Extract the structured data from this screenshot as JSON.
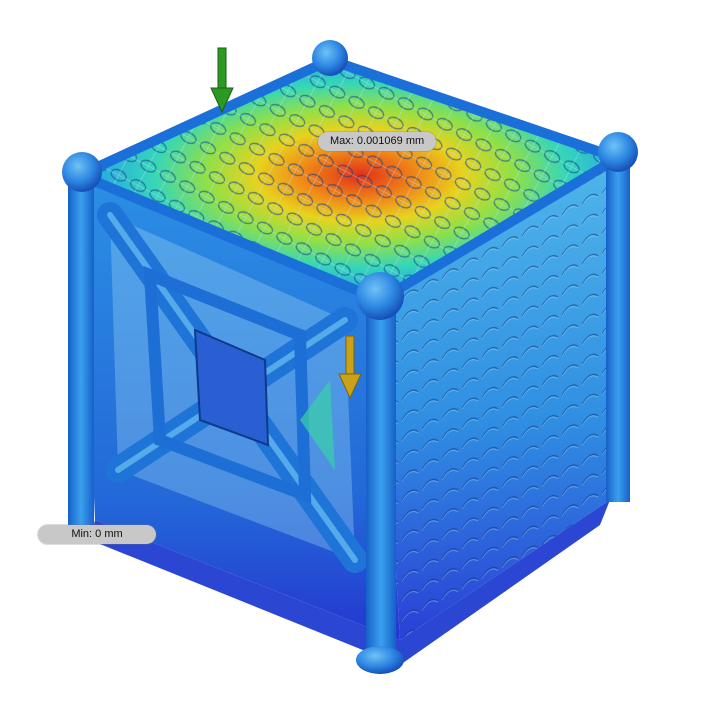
{
  "result": {
    "max_label": "Max: 0.001069 mm",
    "min_label": "Min: 0 mm"
  },
  "colors": {
    "background": "#ffffff",
    "model_base": "#1f7ee0",
    "model_dark": "#1a3fd0",
    "hot_spot": "#e23414",
    "load_arrow_primary": "#2a8f1f",
    "load_arrow_secondary": "#c9a21a",
    "label_bg": "#c8c8c8"
  },
  "icons": [
    "load-arrow-icon",
    "load-arrow-icon"
  ]
}
